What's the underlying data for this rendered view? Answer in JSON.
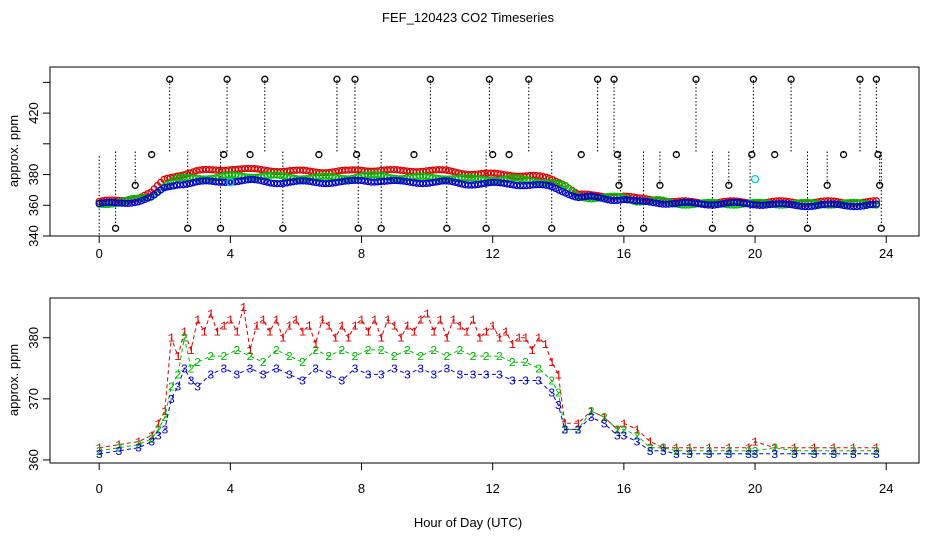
{
  "title": "FEF_120423  CO2 Timeseries",
  "xlabel": "Hour of Day (UTC)",
  "chart_data": [
    {
      "type": "scatter",
      "panel": "top",
      "ylabel": "approx. ppm",
      "xlim": [
        -1.5,
        25
      ],
      "ylim": [
        340,
        450
      ],
      "xticks": [
        0,
        4,
        8,
        12,
        16,
        20,
        24
      ],
      "yticks": [
        340,
        360,
        380,
        420
      ],
      "colors": {
        "raw": "#000000",
        "s1": "#dd0000",
        "s2": "#00bb00",
        "s3": "#0000cc",
        "cal": "#00cccc"
      },
      "baseline_x": [
        0,
        0.6,
        1.2,
        1.6,
        2.0,
        2.4,
        3.0,
        3.6,
        4.0,
        4.6,
        5.2,
        6.0,
        7.0,
        7.6,
        8.0,
        8.6,
        9.2,
        10.0,
        10.6,
        11.2,
        12.0,
        12.6,
        13.2,
        13.8,
        14.2,
        14.6,
        15.0,
        15.6,
        16.0,
        16.4,
        17.0,
        17.6,
        18.2,
        19.0,
        20.0,
        21.0,
        22.0,
        23.0,
        23.7
      ],
      "series": [
        {
          "name": "1",
          "color": "#dd0000",
          "values": [
            362,
            363,
            365,
            368,
            377,
            380,
            382,
            383,
            384,
            383,
            383,
            382,
            382,
            382,
            383,
            383,
            382,
            383,
            382,
            381,
            380,
            380,
            379,
            377,
            374,
            367,
            366,
            366,
            366,
            364,
            364,
            362,
            362,
            362,
            362,
            362,
            362,
            362,
            362
          ]
        },
        {
          "name": "2",
          "color": "#00bb00",
          "values": [
            361,
            362,
            364,
            366,
            373,
            377,
            378,
            378,
            379,
            379,
            379,
            378,
            378,
            378,
            379,
            379,
            378,
            378,
            378,
            377,
            377,
            377,
            376,
            375,
            372,
            366,
            365,
            365,
            365,
            363,
            363,
            361,
            361,
            361,
            361,
            361,
            361,
            361,
            361
          ]
        },
        {
          "name": "3",
          "color": "#0000cc",
          "values": [
            361,
            361,
            363,
            365,
            371,
            374,
            375,
            375,
            376,
            376,
            375,
            375,
            375,
            375,
            376,
            376,
            375,
            375,
            375,
            374,
            374,
            374,
            373,
            372,
            369,
            365,
            365,
            364,
            364,
            362,
            362,
            361,
            361,
            361,
            361,
            360,
            360,
            360,
            360
          ]
        }
      ],
      "calibration_points": [
        {
          "x": 4.0,
          "y": 375
        },
        {
          "x": 20.0,
          "y": 377
        }
      ],
      "spikes": [
        {
          "x": 0.5,
          "y": 345
        },
        {
          "x": 1.1,
          "y": 373
        },
        {
          "x": 1.6,
          "y": 393
        },
        {
          "x": 2.15,
          "y": 442
        },
        {
          "x": 2.7,
          "y": 345
        },
        {
          "x": 3.7,
          "y": 345
        },
        {
          "x": 3.8,
          "y": 393
        },
        {
          "x": 3.9,
          "y": 442
        },
        {
          "x": 4.6,
          "y": 393
        },
        {
          "x": 5.05,
          "y": 442
        },
        {
          "x": 5.6,
          "y": 345
        },
        {
          "x": 6.7,
          "y": 393
        },
        {
          "x": 7.25,
          "y": 442
        },
        {
          "x": 7.8,
          "y": 442
        },
        {
          "x": 7.85,
          "y": 393
        },
        {
          "x": 7.9,
          "y": 345
        },
        {
          "x": 8.6,
          "y": 345
        },
        {
          "x": 9.6,
          "y": 393
        },
        {
          "x": 10.1,
          "y": 442
        },
        {
          "x": 10.6,
          "y": 345
        },
        {
          "x": 11.8,
          "y": 345
        },
        {
          "x": 11.9,
          "y": 442
        },
        {
          "x": 12.0,
          "y": 393
        },
        {
          "x": 12.5,
          "y": 393
        },
        {
          "x": 13.1,
          "y": 442
        },
        {
          "x": 13.8,
          "y": 345
        },
        {
          "x": 14.7,
          "y": 393
        },
        {
          "x": 15.2,
          "y": 442
        },
        {
          "x": 15.7,
          "y": 442
        },
        {
          "x": 15.8,
          "y": 393
        },
        {
          "x": 15.85,
          "y": 373
        },
        {
          "x": 15.9,
          "y": 345
        },
        {
          "x": 16.6,
          "y": 345
        },
        {
          "x": 17.1,
          "y": 373
        },
        {
          "x": 17.6,
          "y": 393
        },
        {
          "x": 18.2,
          "y": 442
        },
        {
          "x": 18.7,
          "y": 345
        },
        {
          "x": 19.2,
          "y": 373
        },
        {
          "x": 19.85,
          "y": 345
        },
        {
          "x": 19.9,
          "y": 393
        },
        {
          "x": 19.95,
          "y": 442
        },
        {
          "x": 20.6,
          "y": 393
        },
        {
          "x": 21.1,
          "y": 442
        },
        {
          "x": 21.6,
          "y": 345
        },
        {
          "x": 22.2,
          "y": 373
        },
        {
          "x": 22.7,
          "y": 393
        },
        {
          "x": 23.2,
          "y": 442
        },
        {
          "x": 23.7,
          "y": 442
        },
        {
          "x": 23.75,
          "y": 393
        },
        {
          "x": 23.8,
          "y": 373
        },
        {
          "x": 23.85,
          "y": 345
        }
      ],
      "spike_base": 395
    },
    {
      "type": "line",
      "panel": "bottom",
      "ylabel": "approx. ppm",
      "xlim": [
        -1.5,
        25
      ],
      "ylim": [
        359.5,
        386.5
      ],
      "xticks": [
        0,
        4,
        8,
        12,
        16,
        20,
        24
      ],
      "yticks": [
        360,
        370,
        380
      ],
      "series": [
        {
          "name": "1",
          "color": "#dd0000",
          "x": [
            0,
            0.6,
            1.2,
            1.6,
            1.8,
            2.0,
            2.2,
            2.4,
            2.6,
            2.8,
            3.0,
            3.2,
            3.4,
            3.6,
            3.8,
            4.0,
            4.2,
            4.4,
            4.6,
            4.8,
            5.0,
            5.2,
            5.4,
            5.6,
            5.8,
            6.0,
            6.2,
            6.4,
            6.6,
            6.8,
            7.0,
            7.2,
            7.4,
            7.6,
            7.8,
            8.0,
            8.2,
            8.4,
            8.6,
            8.8,
            9.0,
            9.2,
            9.4,
            9.6,
            9.8,
            10.0,
            10.2,
            10.4,
            10.6,
            10.8,
            11.0,
            11.2,
            11.4,
            11.6,
            11.8,
            12.0,
            12.2,
            12.4,
            12.6,
            12.8,
            13.0,
            13.2,
            13.4,
            13.6,
            13.8,
            14.0,
            14.2,
            14.6,
            15.0,
            15.4,
            15.8,
            16.0,
            16.4,
            16.8,
            17.2,
            17.6,
            18.0,
            18.6,
            19.2,
            19.8,
            20.0,
            20.6,
            21.2,
            21.8,
            22.4,
            23.0,
            23.7
          ],
          "values": [
            362,
            362.5,
            363,
            364,
            366,
            368,
            380,
            377,
            381,
            378,
            383,
            381,
            384,
            381,
            382,
            383,
            381,
            385,
            378,
            382,
            383,
            381,
            383,
            380,
            382,
            383,
            381,
            382,
            379,
            383,
            382,
            380,
            382,
            380,
            382,
            383,
            381,
            383,
            380,
            383,
            382,
            380,
            382,
            381,
            383,
            384,
            381,
            383,
            380,
            383,
            382,
            381,
            383,
            380,
            381,
            382,
            380,
            381,
            379,
            380,
            380,
            378,
            380,
            379,
            376,
            374,
            366,
            366,
            368,
            367,
            365,
            366,
            365,
            363,
            362,
            362,
            362,
            362,
            362,
            362,
            363,
            362,
            362,
            362,
            362,
            362,
            362
          ]
        },
        {
          "name": "2",
          "color": "#00bb00",
          "x": [
            0,
            0.6,
            1.2,
            1.6,
            1.8,
            2.0,
            2.2,
            2.4,
            2.6,
            2.8,
            3.0,
            3.4,
            3.8,
            4.2,
            4.6,
            5.0,
            5.4,
            5.8,
            6.2,
            6.6,
            7.0,
            7.4,
            7.8,
            8.2,
            8.6,
            9.0,
            9.4,
            9.8,
            10.2,
            10.6,
            11.0,
            11.4,
            11.8,
            12.2,
            12.6,
            13.0,
            13.4,
            13.8,
            14.0,
            14.2,
            14.6,
            15.0,
            15.4,
            15.8,
            16.0,
            16.4,
            16.8,
            17.2,
            17.6,
            18.0,
            18.6,
            19.2,
            19.8,
            20.0,
            20.6,
            21.2,
            21.8,
            22.4,
            23.0,
            23.7
          ],
          "values": [
            361.5,
            362,
            362.5,
            363.5,
            365,
            367,
            372,
            374,
            380,
            375,
            376,
            377,
            377,
            378,
            377,
            376,
            378,
            377,
            376,
            378,
            377,
            378,
            377,
            378,
            378,
            377,
            378,
            377,
            378,
            377,
            378,
            377,
            377,
            377,
            376,
            376,
            375,
            373,
            371,
            365,
            365,
            368,
            367,
            365,
            365,
            364,
            362,
            362,
            361.5,
            361.5,
            361.5,
            361.5,
            361.5,
            361.5,
            362,
            361.5,
            361.5,
            361.5,
            361.5,
            361.5
          ]
        },
        {
          "name": "3",
          "color": "#0000cc",
          "x": [
            0,
            0.6,
            1.2,
            1.6,
            1.8,
            2.0,
            2.2,
            2.4,
            2.6,
            2.8,
            3.0,
            3.4,
            3.8,
            4.2,
            4.6,
            5.0,
            5.4,
            5.8,
            6.2,
            6.6,
            7.0,
            7.4,
            7.8,
            8.2,
            8.6,
            9.0,
            9.4,
            9.8,
            10.2,
            10.6,
            11.0,
            11.4,
            11.8,
            12.2,
            12.6,
            13.0,
            13.4,
            13.8,
            14.0,
            14.2,
            14.6,
            15.0,
            15.4,
            15.8,
            16.0,
            16.4,
            16.8,
            17.2,
            17.6,
            18.0,
            18.6,
            19.2,
            19.8,
            20.0,
            20.6,
            21.2,
            21.8,
            22.4,
            23.0,
            23.7
          ],
          "values": [
            361,
            361.5,
            362,
            363,
            364,
            365,
            370,
            372,
            375,
            373,
            372,
            374,
            375,
            374,
            375,
            374,
            375,
            374,
            373,
            375,
            374,
            373,
            375,
            374,
            374,
            375,
            374,
            375,
            374,
            375,
            374,
            374,
            374,
            374,
            373,
            373,
            373,
            371,
            369,
            365,
            365,
            367,
            366,
            364,
            364,
            363,
            361.5,
            361.5,
            361,
            361,
            361,
            361,
            361,
            361,
            361,
            361,
            361,
            361,
            361,
            361
          ]
        }
      ]
    }
  ]
}
